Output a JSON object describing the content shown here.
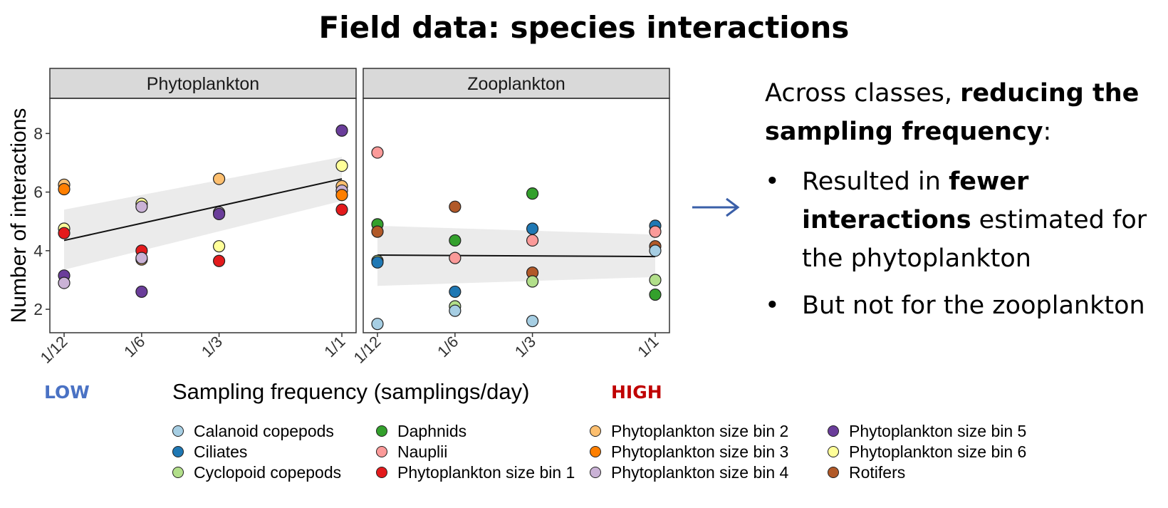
{
  "title": "Field data: species interactions",
  "low_label": "LOW",
  "high_label": "HIGH",
  "chart_data": {
    "type": "scatter",
    "ylabel": "Number of interactions",
    "xlabel": "Sampling frequency (samplings/day)",
    "x_categories": [
      "1/12",
      "1/6",
      "1/3",
      "1/1"
    ],
    "x_values": [
      0.0833,
      0.1667,
      0.3333,
      1.0
    ],
    "ylim": [
      1.2,
      9.2
    ],
    "yticks": [
      2,
      4,
      6,
      8
    ],
    "grid": false,
    "legend_position": "bottom",
    "legend": [
      {
        "name": "Calanoid copepods",
        "color": "#a6cee3"
      },
      {
        "name": "Ciliates",
        "color": "#1f78b4"
      },
      {
        "name": "Cyclopoid copepods",
        "color": "#b2df8a"
      },
      {
        "name": "Daphnids",
        "color": "#33a02c"
      },
      {
        "name": "Nauplii",
        "color": "#fb9a99"
      },
      {
        "name": "Phytoplankton size bin 1",
        "color": "#e31a1c"
      },
      {
        "name": "Phytoplankton size bin 2",
        "color": "#fdbf6f"
      },
      {
        "name": "Phytoplankton size bin 3",
        "color": "#ff7f00"
      },
      {
        "name": "Phytoplankton size bin 4",
        "color": "#cab2d6"
      },
      {
        "name": "Phytoplankton size bin 5",
        "color": "#6a3d9a"
      },
      {
        "name": "Phytoplankton size bin 6",
        "color": "#ffff99"
      },
      {
        "name": "Rotifers",
        "color": "#b15928"
      }
    ],
    "panels": [
      {
        "name": "Phytoplankton",
        "trend": {
          "y_start": 4.35,
          "y_end": 6.45,
          "ci_start": [
            3.35,
            5.4
          ],
          "ci_end": [
            5.7,
            7.2
          ]
        },
        "points": [
          {
            "x": "1/12",
            "y": 6.25,
            "s": 6
          },
          {
            "x": "1/12",
            "y": 6.1,
            "s": 7
          },
          {
            "x": "1/12",
            "y": 4.75,
            "s": 10
          },
          {
            "x": "1/12",
            "y": 4.6,
            "s": 5
          },
          {
            "x": "1/12",
            "y": 3.15,
            "s": 9
          },
          {
            "x": "1/12",
            "y": 2.9,
            "s": 8
          },
          {
            "x": "1/6",
            "y": 5.6,
            "s": 10
          },
          {
            "x": "1/6",
            "y": 5.5,
            "s": 8
          },
          {
            "x": "1/6",
            "y": 4.0,
            "s": 5
          },
          {
            "x": "1/6",
            "y": 3.7,
            "s": 6
          },
          {
            "x": "1/6",
            "y": 3.75,
            "s": 8
          },
          {
            "x": "1/6",
            "y": 2.6,
            "s": 9
          },
          {
            "x": "1/3",
            "y": 6.45,
            "s": 6
          },
          {
            "x": "1/3",
            "y": 5.3,
            "s": 8
          },
          {
            "x": "1/3",
            "y": 5.25,
            "s": 9
          },
          {
            "x": "1/3",
            "y": 4.15,
            "s": 10
          },
          {
            "x": "1/3",
            "y": 3.65,
            "s": 5
          },
          {
            "x": "1/1",
            "y": 8.1,
            "s": 9
          },
          {
            "x": "1/1",
            "y": 6.9,
            "s": 10
          },
          {
            "x": "1/1",
            "y": 6.2,
            "s": 6
          },
          {
            "x": "1/1",
            "y": 6.05,
            "s": 8
          },
          {
            "x": "1/1",
            "y": 5.9,
            "s": 7
          },
          {
            "x": "1/1",
            "y": 5.4,
            "s": 5
          }
        ]
      },
      {
        "name": "Zooplankton",
        "trend": {
          "y_start": 3.85,
          "y_end": 3.8,
          "ci_start": [
            2.8,
            4.85
          ],
          "ci_end": [
            3.1,
            4.55
          ]
        },
        "points": [
          {
            "x": "1/12",
            "y": 7.35,
            "s": 4
          },
          {
            "x": "1/12",
            "y": 4.9,
            "s": 3
          },
          {
            "x": "1/12",
            "y": 4.65,
            "s": 11
          },
          {
            "x": "1/12",
            "y": 3.65,
            "s": 2
          },
          {
            "x": "1/12",
            "y": 3.6,
            "s": 1
          },
          {
            "x": "1/12",
            "y": 1.5,
            "s": 0
          },
          {
            "x": "1/6",
            "y": 5.5,
            "s": 11
          },
          {
            "x": "1/6",
            "y": 4.35,
            "s": 3
          },
          {
            "x": "1/6",
            "y": 3.75,
            "s": 4
          },
          {
            "x": "1/6",
            "y": 2.6,
            "s": 1
          },
          {
            "x": "1/6",
            "y": 2.1,
            "s": 2
          },
          {
            "x": "1/6",
            "y": 1.95,
            "s": 0
          },
          {
            "x": "1/3",
            "y": 5.95,
            "s": 3
          },
          {
            "x": "1/3",
            "y": 4.75,
            "s": 1
          },
          {
            "x": "1/3",
            "y": 4.35,
            "s": 4
          },
          {
            "x": "1/3",
            "y": 3.25,
            "s": 11
          },
          {
            "x": "1/3",
            "y": 2.95,
            "s": 2
          },
          {
            "x": "1/3",
            "y": 1.6,
            "s": 0
          },
          {
            "x": "1/1",
            "y": 4.85,
            "s": 1
          },
          {
            "x": "1/1",
            "y": 4.65,
            "s": 4
          },
          {
            "x": "1/1",
            "y": 4.15,
            "s": 11
          },
          {
            "x": "1/1",
            "y": 4.0,
            "s": 0
          },
          {
            "x": "1/1",
            "y": 3.0,
            "s": 2
          },
          {
            "x": "1/1",
            "y": 2.5,
            "s": 3
          }
        ]
      }
    ]
  },
  "summary": {
    "intro_prefix": "Across classes, ",
    "intro_bold": "reducing the sampling frequency",
    "intro_suffix": ":",
    "bullet1_prefix": "Resulted in ",
    "bullet1_bold": "fewer interactions",
    "bullet1_suffix": " estimated for the phytoplankton",
    "bullet2": "But not for the zooplankton",
    "bullet_symbol": "•"
  }
}
